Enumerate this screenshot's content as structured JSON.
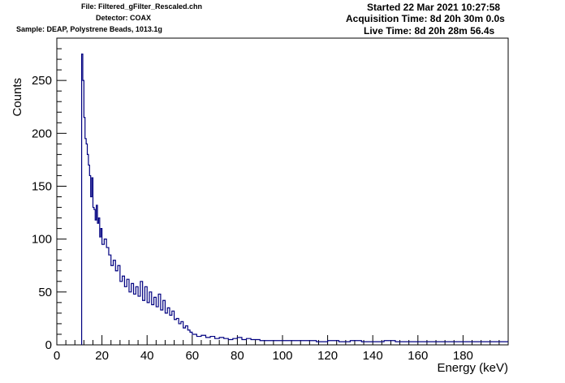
{
  "header": {
    "file": "File: Filtered_gFilter_Rescaled.chn",
    "detector": "Detector: COAX",
    "sample": "Sample: DEAP, Polystrene Beads, 1013.1g",
    "started": "Started 22 Mar 2021 10:27:58",
    "acquisition": "Acquisition Time: 8d 20h 30m 0.0s",
    "live": "Live Time: 8d 20h 28m 56.4s"
  },
  "chart_data": {
    "type": "line",
    "style": "step histogram",
    "xlabel": "Energy (keV)",
    "ylabel": "Counts",
    "xlim": [
      0,
      200
    ],
    "ylim": [
      0,
      290
    ],
    "grid": false,
    "line_color": "#000080",
    "x_ticks": [
      0,
      20,
      40,
      60,
      80,
      100,
      120,
      140,
      160,
      180
    ],
    "y_ticks": [
      0,
      50,
      100,
      150,
      200,
      250
    ],
    "series": [
      {
        "x": [
          11,
          11.5,
          12,
          12.5,
          13,
          13.5,
          14,
          14.5,
          15,
          15.5,
          16,
          16.5,
          17,
          17.5,
          18,
          18.5,
          19,
          19.5,
          20,
          21,
          22,
          23,
          24,
          25,
          26,
          27,
          28,
          29,
          30,
          31,
          32,
          33,
          34,
          35,
          36,
          37,
          38,
          39,
          40,
          41,
          42,
          43,
          44,
          45,
          46,
          47,
          48,
          49,
          50,
          51,
          52,
          53,
          54,
          55,
          56,
          57,
          58,
          59,
          60,
          62,
          64,
          66,
          68,
          70,
          72,
          74,
          76,
          78,
          80,
          82,
          84,
          86,
          88,
          90,
          95,
          100,
          105,
          110,
          115,
          120,
          125,
          130,
          135,
          140,
          145,
          150,
          155,
          160,
          165,
          170,
          175,
          180,
          185,
          190,
          195
        ],
        "y": [
          275,
          250,
          215,
          195,
          190,
          180,
          170,
          160,
          140,
          158,
          130,
          128,
          118,
          132,
          115,
          120,
          102,
          110,
          95,
          100,
          92,
          85,
          75,
          80,
          70,
          75,
          60,
          65,
          55,
          62,
          50,
          58,
          48,
          55,
          46,
          60,
          42,
          55,
          40,
          50,
          38,
          45,
          36,
          48,
          33,
          42,
          30,
          35,
          28,
          32,
          24,
          25,
          20,
          22,
          16,
          18,
          14,
          12,
          10,
          8,
          9,
          7,
          8,
          6,
          7,
          6,
          5,
          6,
          7,
          5,
          6,
          5,
          5,
          4,
          4,
          4,
          4,
          4,
          3,
          4,
          3,
          4,
          3,
          3,
          4,
          3,
          3,
          3,
          3,
          3,
          3,
          3,
          3,
          3,
          3
        ]
      }
    ]
  }
}
